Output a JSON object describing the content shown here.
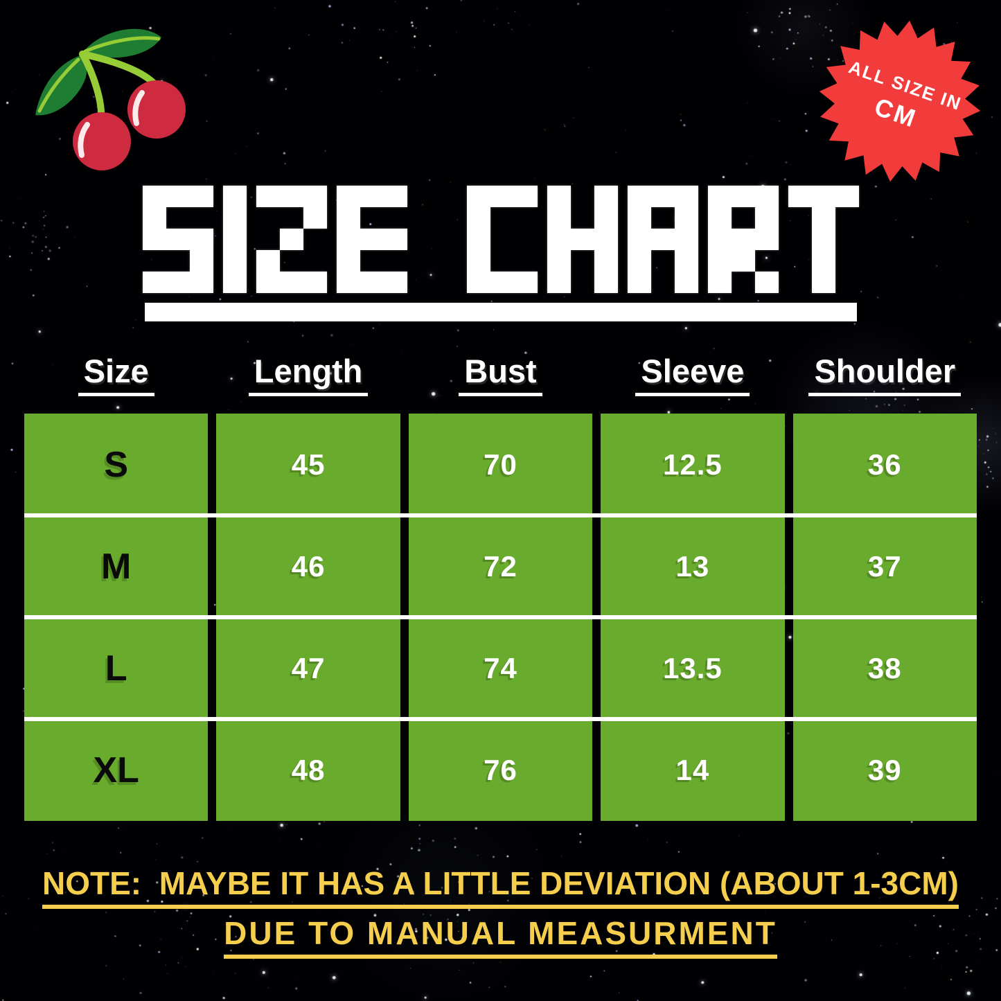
{
  "title": {
    "text": "SIZE CHART"
  },
  "badge": {
    "line1": "ALL SIZE IN",
    "line2": "CM"
  },
  "chart_data": {
    "type": "table",
    "title": "SIZE CHART",
    "unit": "cm",
    "columns": [
      "Size",
      "Length",
      "Bust",
      "Sleeve",
      "Shoulder"
    ],
    "rows": [
      {
        "size": "S",
        "length": "45",
        "bust": "70",
        "sleeve": "12.5",
        "shoulder": "36"
      },
      {
        "size": "M",
        "length": "46",
        "bust": "72",
        "sleeve": "13",
        "shoulder": "37"
      },
      {
        "size": "L",
        "length": "47",
        "bust": "74",
        "sleeve": "13.5",
        "shoulder": "38"
      },
      {
        "size": "XL",
        "length": "48",
        "bust": "76",
        "sleeve": "14",
        "shoulder": "39"
      }
    ]
  },
  "note": {
    "line1": "NOTE:  MAYBE IT HAS A LITTLE DEVIATION (ABOUT 1-3CM)",
    "line2": "DUE TO MANUAL MEASURMENT"
  },
  "icons": {
    "cherries": "cherries-illustration",
    "badge_star": "starburst-badge"
  },
  "colors": {
    "background": "#010103",
    "table_green": "#69AB2D",
    "badge_red": "#F23C3C",
    "note_yellow": "#F5CE4D",
    "title_white": "#FFFFFF",
    "cherry_red": "#CE2B40",
    "leaf_green": "#1E7D33",
    "stem_green": "#96CC35"
  }
}
